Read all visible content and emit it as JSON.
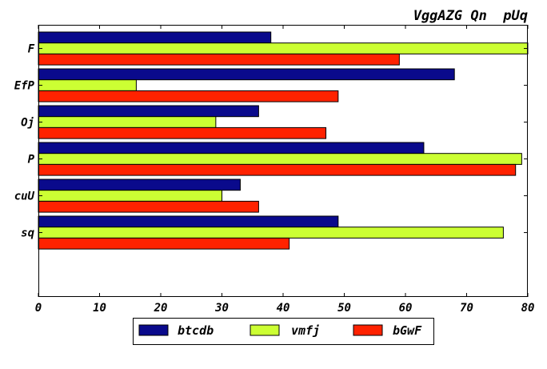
{
  "chart_data": {
    "type": "bar",
    "orientation": "horizontal",
    "title": "VggAZG Qn  pUq",
    "categories": [
      "F",
      "EfP",
      "Oj",
      "P",
      "cuU",
      "sq"
    ],
    "series": [
      {
        "name": "btcdb",
        "color": "#0a0a8c",
        "values": [
          38,
          68,
          36,
          63,
          33,
          49
        ]
      },
      {
        "name": "vmfj",
        "color": "#ccff33",
        "values": [
          80,
          16,
          29,
          79,
          30,
          76
        ]
      },
      {
        "name": "bGwF",
        "color": "#ff2200",
        "values": [
          59,
          49,
          47,
          78,
          36,
          41
        ]
      }
    ],
    "x_ticks": [
      0,
      10,
      20,
      30,
      40,
      50,
      60,
      70,
      80
    ],
    "xlim": [
      0,
      80
    ],
    "xlabel": "",
    "ylabel": "",
    "grid": false,
    "legend_position": "bottom-center"
  }
}
